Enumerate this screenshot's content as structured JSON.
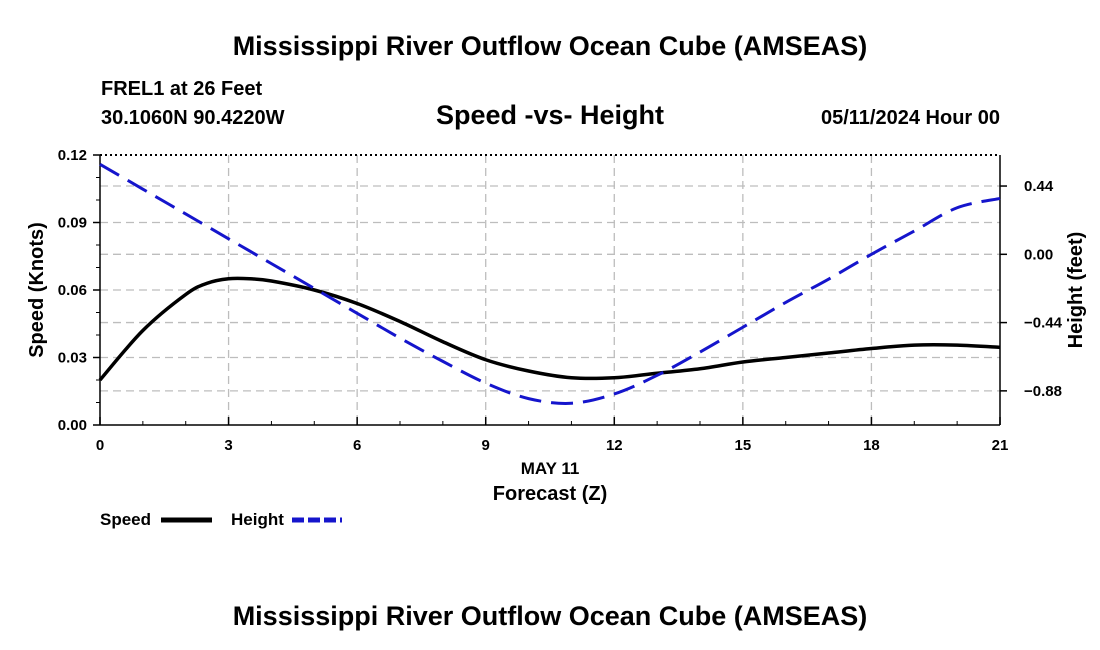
{
  "header": {
    "title": "Mississippi River Outflow Ocean Cube (AMSEAS)",
    "station": "FREL1 at 26 Feet",
    "coords": "30.1060N  90.4220W",
    "date": "05/11/2024 Hour 00"
  },
  "footer": {
    "title": "Mississippi River Outflow Ocean Cube (AMSEAS)"
  },
  "chart_data": {
    "type": "line",
    "title": "Speed -vs- Height",
    "xlabel": "Forecast (Z)",
    "date_label": "MAY 11",
    "ylabel": "Speed (Knots)",
    "y2label": "Height (feet)",
    "xlim": [
      0,
      21
    ],
    "ylim": [
      0,
      0.12
    ],
    "y2lim": [
      -1.1,
      0.64
    ],
    "x_ticks": [
      0,
      3,
      6,
      9,
      12,
      15,
      18,
      21
    ],
    "x_tick_labels": [
      "0",
      "3",
      "6",
      "9",
      "12",
      "15",
      "18",
      "21"
    ],
    "y_ticks": [
      0,
      0.03,
      0.06,
      0.09,
      0.12
    ],
    "y_tick_labels": [
      "0.00",
      "0.03",
      "0.06",
      "0.09",
      "0.12"
    ],
    "y2_ticks": [
      -0.88,
      -0.44,
      0.0,
      0.44
    ],
    "y2_tick_labels": [
      "−0.88",
      "−0.44",
      "0.00",
      "0.44"
    ],
    "grid": true,
    "legend_position": "bottom-left",
    "series": [
      {
        "name": "Speed",
        "axis": "left",
        "color": "#000000",
        "style": "solid",
        "x": [
          0,
          1,
          2,
          2.5,
          3,
          3.5,
          4,
          5,
          6,
          7,
          8,
          9,
          10,
          11,
          12,
          13,
          14,
          15,
          16,
          17,
          18,
          19,
          20,
          21
        ],
        "y": [
          0.02,
          0.042,
          0.058,
          0.063,
          0.065,
          0.065,
          0.064,
          0.06,
          0.054,
          0.046,
          0.037,
          0.029,
          0.024,
          0.021,
          0.021,
          0.023,
          0.025,
          0.028,
          0.03,
          0.032,
          0.034,
          0.0355,
          0.0355,
          0.0345
        ]
      },
      {
        "name": "Height",
        "axis": "right",
        "color": "#1515cc",
        "style": "dashed",
        "x": [
          0,
          1,
          2,
          3,
          4,
          5,
          6,
          7,
          8,
          9,
          10,
          11,
          12,
          13,
          14,
          15,
          16,
          17,
          18,
          19,
          20,
          21
        ],
        "y": [
          0.58,
          0.42,
          0.26,
          0.1,
          -0.06,
          -0.22,
          -0.38,
          -0.54,
          -0.69,
          -0.83,
          -0.93,
          -0.96,
          -0.9,
          -0.78,
          -0.63,
          -0.47,
          -0.31,
          -0.16,
          0.0,
          0.15,
          0.3,
          0.36
        ]
      }
    ]
  }
}
